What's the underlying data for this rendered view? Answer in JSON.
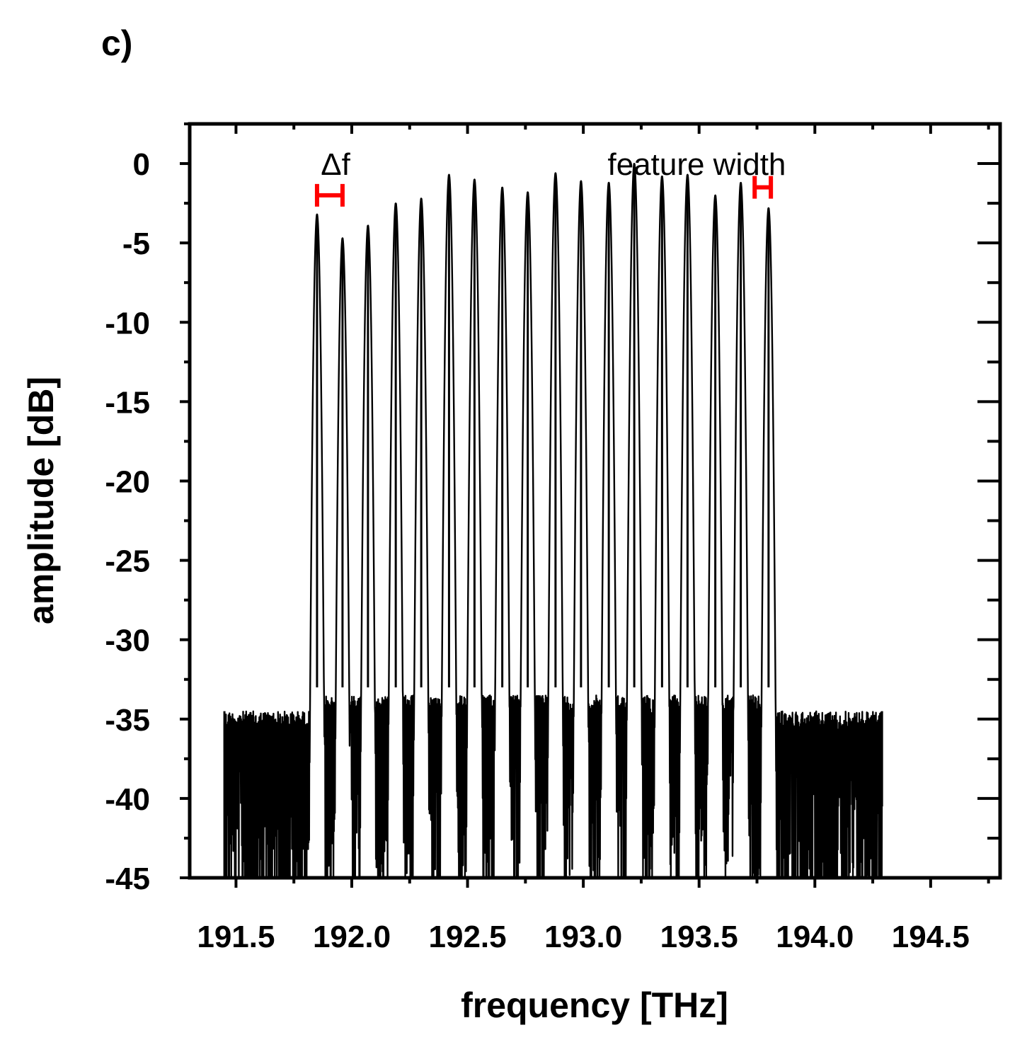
{
  "panel_label": "c)",
  "chart_data": {
    "type": "line",
    "title": "",
    "xlabel": "frequency [THz]",
    "ylabel": "amplitude [dB]",
    "xlim": [
      191.3,
      194.8
    ],
    "ylim": [
      -45,
      2.5
    ],
    "x_ticks": [
      191.5,
      192.0,
      192.5,
      193.0,
      193.5,
      194.0,
      194.5
    ],
    "x_tick_labels": [
      "191.5",
      "192.0",
      "192.5",
      "193.0",
      "193.5",
      "194.0",
      "194.5"
    ],
    "x_minor_step": 0.25,
    "y_ticks": [
      0,
      -5,
      -10,
      -15,
      -20,
      -25,
      -30,
      -35,
      -40,
      -45
    ],
    "y_tick_labels": [
      "0",
      "-5",
      "-10",
      "-15",
      "-20",
      "-25",
      "-30",
      "-35",
      "-40",
      "-45"
    ],
    "y_minor_step": 2.5,
    "grid": false,
    "legend": "none",
    "line_color": "#000000",
    "annotation_color": "#ff0000",
    "spectrum": {
      "x_start": 191.45,
      "x_end": 194.29,
      "noise_floor_outer": -34.5,
      "noise_floor_inner": -33.5,
      "noise_min_db": -45,
      "line_width_thz": 0.018
    },
    "peaks": {
      "x": [
        191.85,
        191.96,
        192.07,
        192.19,
        192.3,
        192.42,
        192.53,
        192.65,
        192.76,
        192.88,
        192.99,
        193.11,
        193.22,
        193.34,
        193.45,
        193.57,
        193.68,
        193.8
      ],
      "y": [
        -3.2,
        -4.7,
        -3.9,
        -2.5,
        -2.2,
        -0.7,
        -1.0,
        -1.5,
        -1.8,
        -0.6,
        -1.1,
        -1.2,
        0.0,
        -0.8,
        -0.7,
        -2.0,
        -1.2,
        -2.8
      ]
    },
    "annotations": [
      {
        "text": "Δf",
        "x": 191.93,
        "y": 0.0
      },
      {
        "text": "feature width",
        "x": 193.49,
        "y": 0.0
      }
    ],
    "markers": [
      {
        "type": "interval",
        "x_from": 191.85,
        "x_to": 191.96,
        "y": -2.0
      },
      {
        "type": "interval",
        "x_from": 193.74,
        "x_to": 193.81,
        "y": -1.5
      }
    ]
  }
}
